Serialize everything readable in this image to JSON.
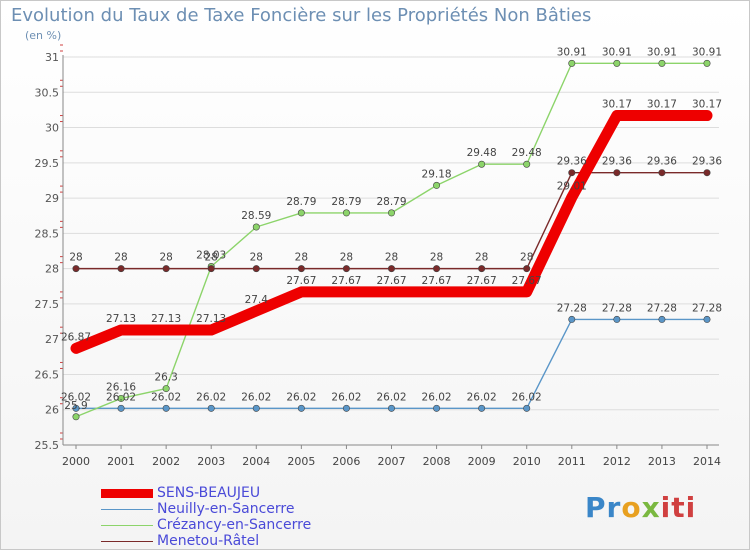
{
  "chart_data": {
    "type": "line",
    "title": "Evolution du Taux de Taxe Foncière sur les Propriétés Non Bâties",
    "unit_label": "(en %)",
    "x": [
      "2000",
      "2001",
      "2002",
      "2003",
      "2004",
      "2005",
      "2006",
      "2007",
      "2008",
      "2009",
      "2010",
      "2011",
      "2012",
      "2013",
      "2014"
    ],
    "ylim": [
      25.5,
      31
    ],
    "yticks": [
      "25.5",
      "26",
      "26.5",
      "27",
      "27.5",
      "28",
      "28.5",
      "29",
      "29.5",
      "30",
      "30.5",
      "31"
    ],
    "series": [
      {
        "name": "SENS-BEAUJEU",
        "color": "#ee0000",
        "values": [
          26.87,
          27.13,
          27.13,
          27.13,
          27.4,
          27.67,
          27.67,
          27.67,
          27.67,
          27.67,
          27.67,
          29.01,
          30.17,
          30.17,
          30.17
        ],
        "labels": [
          "26.87",
          "27.13",
          "27.13",
          "27.13",
          "27.4",
          "27.67",
          "27.67",
          "27.67",
          "27.67",
          "27.67",
          "27.67",
          "29.01",
          "30.17",
          "30.17",
          "30.17"
        ]
      },
      {
        "name": "Neuilly-en-Sancerre",
        "color": "#5a96c8",
        "values": [
          26.02,
          26.02,
          26.02,
          26.02,
          26.02,
          26.02,
          26.02,
          26.02,
          26.02,
          26.02,
          26.02,
          27.28,
          27.28,
          27.28,
          27.28
        ],
        "labels": [
          "26.02",
          "26.02",
          "26.02",
          "26.02",
          "26.02",
          "26.02",
          "26.02",
          "26.02",
          "26.02",
          "26.02",
          "26.02",
          "27.28",
          "27.28",
          "27.28",
          "27.28"
        ]
      },
      {
        "name": "Crézancy-en-Sancerre",
        "color": "#8cd46a",
        "values": [
          25.9,
          26.16,
          26.3,
          28.03,
          28.59,
          28.79,
          28.79,
          28.79,
          29.18,
          29.48,
          29.48,
          30.91,
          30.91,
          30.91,
          30.91
        ],
        "labels": [
          "25.9",
          "26.16",
          "26.3",
          "28.03",
          "28.59",
          "28.79",
          "28.79",
          "28.79",
          "29.18",
          "29.48",
          "29.48",
          "30.91",
          "30.91",
          "30.91",
          "30.91"
        ]
      },
      {
        "name": "Menetou-Râtel",
        "color": "#7a2a2a",
        "values": [
          28,
          28,
          28,
          28,
          28,
          28,
          28,
          28,
          28,
          28,
          28,
          29.36,
          29.36,
          29.36,
          29.36
        ],
        "labels": [
          "28",
          "28",
          "28",
          "28",
          "28",
          "28",
          "28",
          "28",
          "28",
          "28",
          "28",
          "29.36",
          "29.36",
          "29.36",
          "29.36"
        ]
      }
    ]
  },
  "brand": {
    "part1": "Pr",
    "part2": "o",
    "part3": "x",
    "part4": "iti"
  }
}
